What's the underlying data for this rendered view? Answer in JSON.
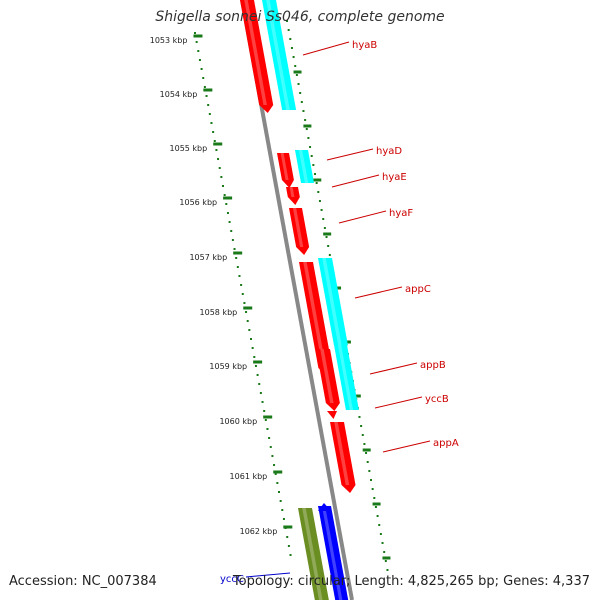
{
  "title": "Shigella sonnei Ss046, complete genome",
  "footer": {
    "accession": "Accession: NC_007384",
    "topology": "Topology: circular; Length: 4,825,265 bp; Genes: 4,337"
  },
  "colors": {
    "forward_gene": "#ff0000",
    "reverse_gene": "#00ffff",
    "blue_gene": "#0000ff",
    "olive_gene": "#6b8e23",
    "tick": "#1a7a1a",
    "backbone": "#888888",
    "label_red": "#cc0000",
    "label_blue": "#0000cc"
  },
  "kbp_ticks": [
    "1053 kbp",
    "1054 kbp",
    "1055 kbp",
    "1056 kbp",
    "1057 kbp",
    "1058 kbp",
    "1059 kbp",
    "1060 kbp",
    "1061 kbp",
    "1062 kbp"
  ],
  "gene_labels": [
    {
      "name": "hyaB",
      "color": "red"
    },
    {
      "name": "hyaD",
      "color": "red"
    },
    {
      "name": "hyaE",
      "color": "red"
    },
    {
      "name": "hyaF",
      "color": "red"
    },
    {
      "name": "appC",
      "color": "red"
    },
    {
      "name": "appB",
      "color": "red"
    },
    {
      "name": "yccB",
      "color": "red"
    },
    {
      "name": "appA",
      "color": "red"
    },
    {
      "name": "yccC",
      "color": "blue"
    }
  ]
}
